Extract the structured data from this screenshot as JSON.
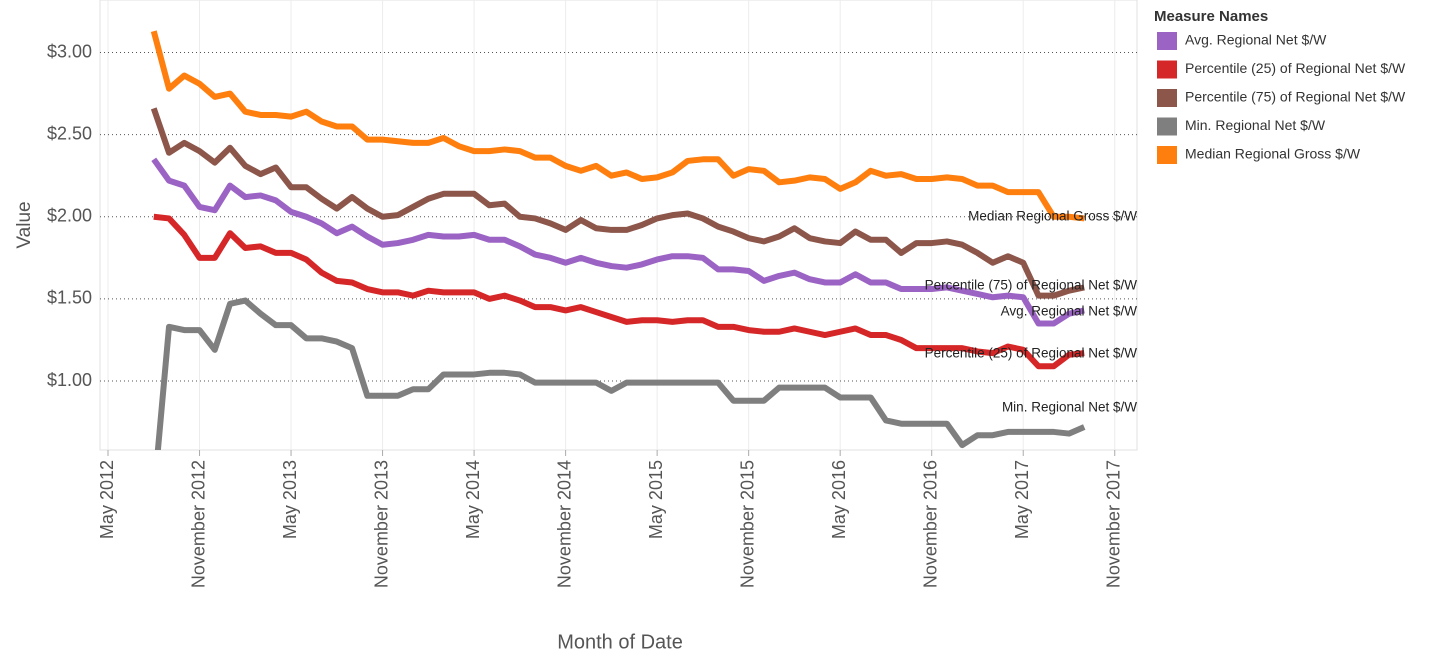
{
  "chart_data": {
    "type": "line",
    "x_label": "Month of Date",
    "y_label": "Value",
    "legend_title": "Measure Names",
    "legend": "right",
    "grid": true,
    "x": [
      "2012-08",
      "2012-09",
      "2012-10",
      "2012-11",
      "2012-12",
      "2013-01",
      "2013-02",
      "2013-03",
      "2013-04",
      "2013-05",
      "2013-06",
      "2013-07",
      "2013-08",
      "2013-09",
      "2013-10",
      "2013-11",
      "2013-12",
      "2014-01",
      "2014-02",
      "2014-03",
      "2014-04",
      "2014-05",
      "2014-06",
      "2014-07",
      "2014-08",
      "2014-09",
      "2014-10",
      "2014-11",
      "2014-12",
      "2015-01",
      "2015-02",
      "2015-03",
      "2015-04",
      "2015-05",
      "2015-06",
      "2015-07",
      "2015-08",
      "2015-09",
      "2015-10",
      "2015-11",
      "2015-12",
      "2016-01",
      "2016-02",
      "2016-03",
      "2016-04",
      "2016-05",
      "2016-06",
      "2016-07",
      "2016-08",
      "2016-09",
      "2016-10",
      "2016-11",
      "2016-12",
      "2017-01",
      "2017-02",
      "2017-03",
      "2017-04",
      "2017-05",
      "2017-06",
      "2017-07",
      "2017-08",
      "2017-09"
    ],
    "xlim": [
      "2012-05",
      "2017-12"
    ],
    "xticks": [
      {
        "value": "2012-05",
        "label": "May 2012"
      },
      {
        "value": "2012-11",
        "label": "November 2012"
      },
      {
        "value": "2013-05",
        "label": "May 2013"
      },
      {
        "value": "2013-11",
        "label": "November 2013"
      },
      {
        "value": "2014-05",
        "label": "May 2014"
      },
      {
        "value": "2014-11",
        "label": "November 2014"
      },
      {
        "value": "2015-05",
        "label": "May 2015"
      },
      {
        "value": "2015-11",
        "label": "November 2015"
      },
      {
        "value": "2016-05",
        "label": "May 2016"
      },
      {
        "value": "2016-11",
        "label": "November 2016"
      },
      {
        "value": "2017-05",
        "label": "May 2017"
      },
      {
        "value": "2017-11",
        "label": "November 2017"
      }
    ],
    "ylim": [
      0.58,
      3.32
    ],
    "yticks": [
      {
        "value": 1.0,
        "label": "$1.00"
      },
      {
        "value": 1.5,
        "label": "$1.50"
      },
      {
        "value": 2.0,
        "label": "$2.00"
      },
      {
        "value": 2.5,
        "label": "$2.50"
      },
      {
        "value": 3.0,
        "label": "$3.00"
      }
    ],
    "series": [
      {
        "name": "Avg. Regional Net $/W",
        "color": "#9b64c4",
        "values": [
          2.35,
          2.22,
          2.19,
          2.06,
          2.04,
          2.19,
          2.12,
          2.13,
          2.1,
          2.03,
          2.0,
          1.96,
          1.9,
          1.94,
          1.88,
          1.83,
          1.84,
          1.86,
          1.89,
          1.88,
          1.88,
          1.89,
          1.86,
          1.86,
          1.82,
          1.77,
          1.75,
          1.72,
          1.75,
          1.72,
          1.7,
          1.69,
          1.71,
          1.74,
          1.76,
          1.76,
          1.75,
          1.68,
          1.68,
          1.67,
          1.61,
          1.64,
          1.66,
          1.62,
          1.6,
          1.6,
          1.65,
          1.6,
          1.6,
          1.56,
          1.56,
          1.56,
          1.57,
          1.55,
          1.53,
          1.51,
          1.52,
          1.51,
          1.35,
          1.35,
          1.41,
          1.43
        ]
      },
      {
        "name": "Percentile (25) of Regional Net $/W",
        "color": "#d62728",
        "values": [
          2.0,
          1.99,
          1.89,
          1.75,
          1.75,
          1.9,
          1.81,
          1.82,
          1.78,
          1.78,
          1.74,
          1.66,
          1.61,
          1.6,
          1.56,
          1.54,
          1.54,
          1.52,
          1.55,
          1.54,
          1.54,
          1.54,
          1.5,
          1.52,
          1.49,
          1.45,
          1.45,
          1.43,
          1.45,
          1.42,
          1.39,
          1.36,
          1.37,
          1.37,
          1.36,
          1.37,
          1.37,
          1.33,
          1.33,
          1.31,
          1.3,
          1.3,
          1.32,
          1.3,
          1.28,
          1.3,
          1.32,
          1.28,
          1.28,
          1.25,
          1.2,
          1.2,
          1.2,
          1.2,
          1.18,
          1.17,
          1.21,
          1.19,
          1.09,
          1.09,
          1.16,
          1.17
        ]
      },
      {
        "name": "Percentile (75) of Regional Net $/W",
        "color": "#8c564b",
        "values": [
          2.66,
          2.39,
          2.45,
          2.4,
          2.33,
          2.42,
          2.31,
          2.26,
          2.3,
          2.18,
          2.18,
          2.11,
          2.05,
          2.12,
          2.05,
          2.0,
          2.01,
          2.06,
          2.11,
          2.14,
          2.14,
          2.14,
          2.07,
          2.08,
          2.0,
          1.99,
          1.96,
          1.92,
          1.98,
          1.93,
          1.92,
          1.92,
          1.95,
          1.99,
          2.01,
          2.02,
          1.99,
          1.94,
          1.91,
          1.87,
          1.85,
          1.88,
          1.93,
          1.87,
          1.85,
          1.84,
          1.91,
          1.86,
          1.86,
          1.78,
          1.84,
          1.84,
          1.85,
          1.83,
          1.78,
          1.72,
          1.76,
          1.72,
          1.52,
          1.52,
          1.55,
          1.57
        ]
      },
      {
        "name": "Min. Regional Net $/W",
        "color": "#7f7f7f",
        "values": [
          0.3,
          1.33,
          1.31,
          1.31,
          1.19,
          1.47,
          1.49,
          1.41,
          1.34,
          1.34,
          1.26,
          1.26,
          1.24,
          1.2,
          0.91,
          0.91,
          0.91,
          0.95,
          0.95,
          1.04,
          1.04,
          1.04,
          1.05,
          1.05,
          1.04,
          0.99,
          0.99,
          0.99,
          0.99,
          0.99,
          0.94,
          0.99,
          0.99,
          0.99,
          0.99,
          0.99,
          0.99,
          0.99,
          0.88,
          0.88,
          0.88,
          0.96,
          0.96,
          0.96,
          0.96,
          0.9,
          0.9,
          0.9,
          0.76,
          0.74,
          0.74,
          0.74,
          0.74,
          0.61,
          0.67,
          0.67,
          0.69,
          0.69,
          0.69,
          0.69,
          0.68,
          0.72
        ]
      },
      {
        "name": "Median Regional Gross $/W",
        "color": "#ff7f0e",
        "values": [
          3.13,
          2.78,
          2.86,
          2.81,
          2.73,
          2.75,
          2.64,
          2.62,
          2.62,
          2.61,
          2.64,
          2.58,
          2.55,
          2.55,
          2.47,
          2.47,
          2.46,
          2.45,
          2.45,
          2.48,
          2.43,
          2.4,
          2.4,
          2.41,
          2.4,
          2.36,
          2.36,
          2.31,
          2.28,
          2.31,
          2.25,
          2.27,
          2.23,
          2.24,
          2.27,
          2.34,
          2.35,
          2.35,
          2.25,
          2.29,
          2.28,
          2.21,
          2.22,
          2.24,
          2.23,
          2.17,
          2.21,
          2.28,
          2.25,
          2.26,
          2.23,
          2.23,
          2.24,
          2.23,
          2.19,
          2.19,
          2.15,
          2.15,
          2.15,
          2.0,
          2.0,
          1.99
        ]
      }
    ]
  }
}
